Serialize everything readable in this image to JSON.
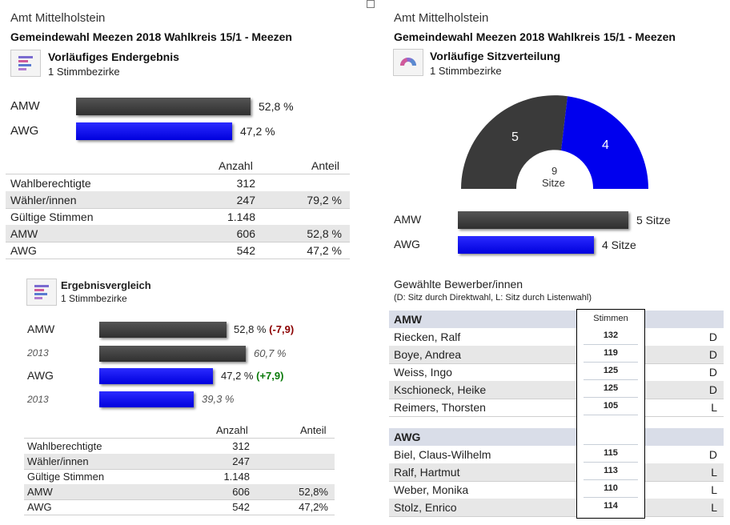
{
  "left": {
    "amt": "Amt Mittelholstein",
    "title": "Gemeindewahl Meezen 2018 Wahlkreis 15/1 - Meezen",
    "result_heading": "Vorläufiges Endergebnis",
    "result_sub": "1 Stimmbezirke",
    "bars": [
      {
        "party": "AMW",
        "label": "52,8 %",
        "value": 52.8,
        "color": "#3a3a3a"
      },
      {
        "party": "AWG",
        "label": "47,2 %",
        "value": 47.2,
        "color": "#0000ff"
      }
    ],
    "table": {
      "col_anzahl": "Anzahl",
      "col_anteil": "Anteil",
      "rows": [
        {
          "label": "Wahlberechtigte",
          "anzahl": "312",
          "anteil": ""
        },
        {
          "label": "Wähler/innen",
          "anzahl": "247",
          "anteil": "79,2 %"
        },
        {
          "label": "Gültige Stimmen",
          "anzahl": "1.148",
          "anteil": ""
        },
        {
          "label": "AMW",
          "anzahl": "606",
          "anteil": "52,8 %"
        },
        {
          "label": "AWG",
          "anzahl": "542",
          "anteil": "47,2 %"
        }
      ]
    },
    "compare_heading": "Ergebnisvergleich",
    "compare_sub": "1 Stimmbezirke",
    "compare_bars": [
      {
        "party": "AMW",
        "year": "2013",
        "label": "52,8 %",
        "value": 52.8,
        "diff": "(-7,9)",
        "diff_color": "#8b0000",
        "prev_label": "60,7 %",
        "prev_value": 60.7,
        "color": "dark"
      },
      {
        "party": "AWG",
        "year": "2013",
        "label": "47,2 %",
        "value": 47.2,
        "diff": "(+7,9)",
        "diff_color": "#0a7a0a",
        "prev_label": "39,3 %",
        "prev_value": 39.3,
        "color": "blue"
      }
    ],
    "table2": {
      "col_anzahl": "Anzahl",
      "col_anteil": "Anteil",
      "rows": [
        {
          "label": "Wahlberechtigte",
          "anzahl": "312",
          "anteil": ""
        },
        {
          "label": "Wähler/innen",
          "anzahl": "247",
          "anteil": ""
        },
        {
          "label": "Gültige Stimmen",
          "anzahl": "1.148",
          "anteil": ""
        },
        {
          "label": "AMW",
          "anzahl": "606",
          "anteil": "52,8%"
        },
        {
          "label": "AWG",
          "anzahl": "542",
          "anteil": "47,2%"
        }
      ]
    }
  },
  "right": {
    "amt": "Amt Mittelholstein",
    "title": "Gemeindewahl Meezen 2018 Wahlkreis 15/1 - Meezen",
    "seats_heading": "Vorläufige Sitzverteilung",
    "seats_sub": "1 Stimmbezirke",
    "semicircle": {
      "amw_seats": "5",
      "awg_seats": "4",
      "total": "9",
      "total_label": "Sitze"
    },
    "seat_bars": [
      {
        "party": "AMW",
        "label": "5 Sitze",
        "value": 5,
        "color": "dark"
      },
      {
        "party": "AWG",
        "label": "4 Sitze",
        "value": 4,
        "color": "blue"
      }
    ],
    "elected_heading": "Gewählte Bewerber/innen",
    "elected_note": "(D: Sitz durch Direktwahl, L: Sitz durch Listenwahl)",
    "stimmen_header": "Stimmen",
    "groups": [
      {
        "party": "AMW",
        "candidates": [
          {
            "name": "Riecken, Ralf",
            "stimmen": "132",
            "type": "D"
          },
          {
            "name": "Boye, Andrea",
            "stimmen": "119",
            "type": "D"
          },
          {
            "name": "Weiss, Ingo",
            "stimmen": "125",
            "type": "D"
          },
          {
            "name": "Kschioneck, Heike",
            "stimmen": "125",
            "type": "D"
          },
          {
            "name": "Reimers, Thorsten",
            "stimmen": "105",
            "type": "L"
          }
        ]
      },
      {
        "party": "AWG",
        "candidates": [
          {
            "name": "Biel, Claus-Wilhelm",
            "stimmen": "115",
            "type": "D"
          },
          {
            "name": "Ralf, Hartmut",
            "stimmen": "113",
            "type": "L"
          },
          {
            "name": "Weber, Monika",
            "stimmen": "110",
            "type": "L"
          },
          {
            "name": "Stolz, Enrico",
            "stimmen": "114",
            "type": "L"
          }
        ]
      }
    ]
  },
  "colors": {
    "dark_bar": "#3a3a3a",
    "blue_bar": "#0000ff",
    "row_shade": "#e7e7e7",
    "group_header": "#d9dde8"
  }
}
